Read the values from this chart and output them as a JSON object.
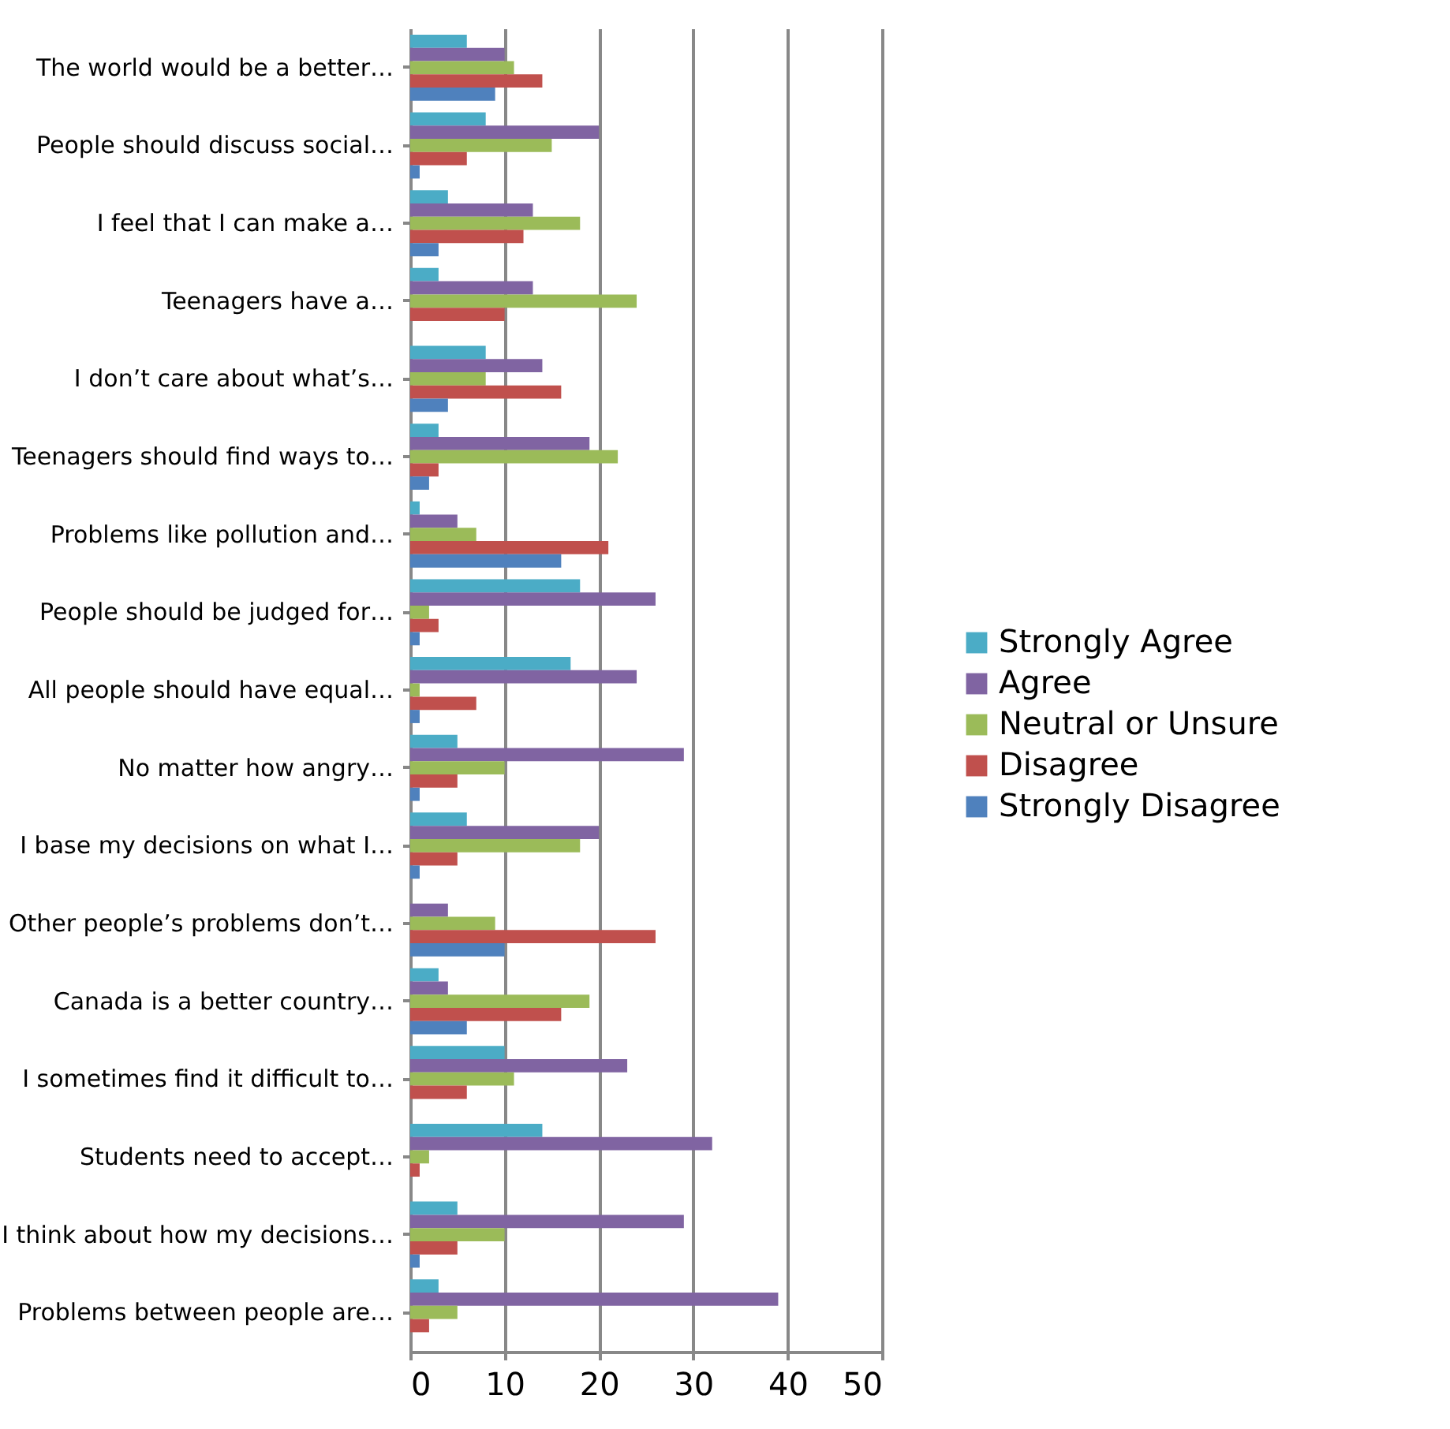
{
  "chart_data": {
    "type": "bar",
    "orientation": "horizontal",
    "categories": [
      "The world would be a better…",
      "People should discuss social…",
      "I feel that I can make a…",
      "Teenagers have a…",
      "I don’t care about what’s…",
      "Teenagers should find ways to…",
      "Problems like pollution and…",
      "People should be judged for…",
      "All people should have equal…",
      "No matter how angry…",
      "I base my decisions on what I…",
      "Other people’s problems don’t…",
      "Canada is a better country…",
      "I sometimes find it difficult to…",
      "Students need to accept…",
      "I think about how my decisions…",
      "Problems between people are…"
    ],
    "series": [
      {
        "name": "Strongly Agree",
        "color": "#4bacc6",
        "values": [
          6,
          8,
          4,
          3,
          8,
          3,
          1,
          18,
          17,
          5,
          6,
          0,
          3,
          10,
          14,
          5,
          3
        ]
      },
      {
        "name": "Agree",
        "color": "#8064a2",
        "values": [
          10,
          20,
          13,
          13,
          14,
          19,
          5,
          26,
          24,
          29,
          20,
          4,
          4,
          23,
          32,
          29,
          39
        ]
      },
      {
        "name": "Neutral or Unsure",
        "color": "#9bbb59",
        "values": [
          11,
          15,
          18,
          24,
          8,
          22,
          7,
          2,
          1,
          10,
          18,
          9,
          19,
          11,
          2,
          10,
          5
        ]
      },
      {
        "name": "Disagree",
        "color": "#c0504d",
        "values": [
          14,
          6,
          12,
          10,
          16,
          3,
          21,
          3,
          7,
          5,
          5,
          26,
          16,
          6,
          1,
          5,
          2
        ]
      },
      {
        "name": "Strongly Disagree",
        "color": "#4f81bd",
        "values": [
          9,
          1,
          3,
          0,
          4,
          2,
          16,
          1,
          1,
          1,
          1,
          10,
          6,
          0,
          0,
          1,
          0
        ]
      }
    ],
    "xlim": [
      0,
      50
    ],
    "xticks": [
      0,
      10,
      20,
      30,
      40,
      50
    ],
    "grid": "x",
    "legend": "right"
  }
}
